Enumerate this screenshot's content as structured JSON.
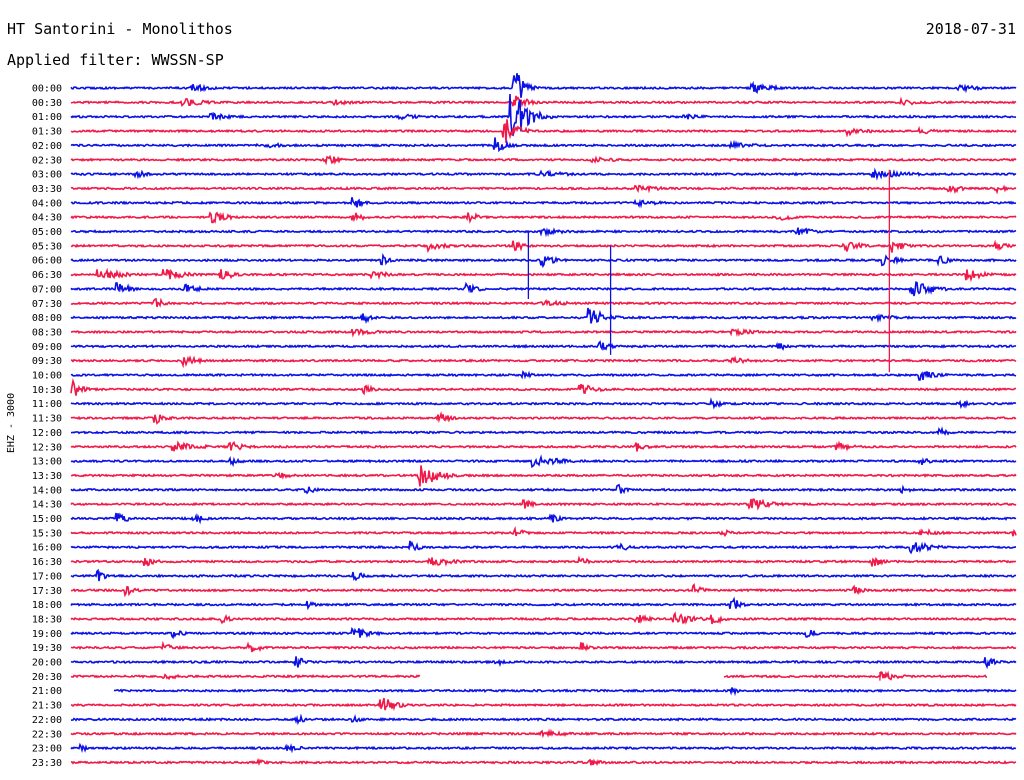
{
  "header": {
    "title": "HT Santorini - Monolithos",
    "date": "2018-07-31",
    "filter": "Applied filter: WWSSN-SP"
  },
  "chart_data": {
    "type": "line",
    "title": "HT Santorini - Monolithos",
    "subtitle": "Applied filter: WWSSN-SP",
    "date": "2018-07-31",
    "ylabel": "EHZ - 3000",
    "xlabel": "",
    "grid": false,
    "colors": {
      "blue": "#0a10e6",
      "red": "#f01a4a"
    },
    "traces": [
      {
        "label": "00:00",
        "color": "blue",
        "events": [
          [
            0.13,
            4,
            20
          ],
          [
            0.47,
            22,
            8
          ],
          [
            0.72,
            6,
            20
          ],
          [
            0.94,
            3,
            30
          ]
        ]
      },
      {
        "label": "00:30",
        "color": "red",
        "events": [
          [
            0.12,
            4,
            25
          ],
          [
            0.28,
            3,
            20
          ],
          [
            0.47,
            8,
            12
          ],
          [
            0.88,
            3,
            25
          ]
        ]
      },
      {
        "label": "01:00",
        "color": "blue",
        "events": [
          [
            0.467,
            30,
            14
          ],
          [
            0.15,
            4,
            15
          ],
          [
            0.35,
            3,
            20
          ],
          [
            0.65,
            3,
            20
          ]
        ]
      },
      {
        "label": "01:30",
        "color": "red",
        "events": [
          [
            0.46,
            14,
            12
          ],
          [
            0.82,
            4,
            25
          ],
          [
            0.9,
            3,
            20
          ]
        ]
      },
      {
        "label": "02:00",
        "color": "blue",
        "events": [
          [
            0.2,
            3,
            30
          ],
          [
            0.45,
            8,
            10
          ],
          [
            0.7,
            3,
            30
          ]
        ]
      },
      {
        "label": "02:30",
        "color": "red",
        "events": [
          [
            0.27,
            6,
            12
          ],
          [
            0.55,
            3,
            30
          ]
        ]
      },
      {
        "label": "03:00",
        "color": "blue",
        "events": [
          [
            0.07,
            4,
            10
          ],
          [
            0.5,
            3,
            30
          ],
          [
            0.85,
            4,
            40
          ]
        ]
      },
      {
        "label": "03:30",
        "color": "red",
        "events": [
          [
            0.93,
            6,
            10
          ],
          [
            0.98,
            4,
            10
          ],
          [
            0.6,
            3,
            30
          ]
        ]
      },
      {
        "label": "04:00",
        "color": "blue",
        "events": [
          [
            0.3,
            6,
            10
          ],
          [
            0.6,
            3,
            25
          ]
        ]
      },
      {
        "label": "04:30",
        "color": "red",
        "events": [
          [
            0.15,
            6,
            15
          ],
          [
            0.3,
            5,
            10
          ],
          [
            0.42,
            6,
            10
          ],
          [
            0.75,
            6,
            10
          ]
        ]
      },
      {
        "label": "05:00",
        "color": "blue",
        "events": [
          [
            0.77,
            4,
            20
          ],
          [
            0.5,
            3,
            30
          ]
        ]
      },
      {
        "label": "05:30",
        "color": "red",
        "events": [
          [
            0.38,
            5,
            15
          ],
          [
            0.47,
            10,
            8
          ],
          [
            0.82,
            6,
            15
          ],
          [
            0.87,
            7,
            10
          ],
          [
            0.98,
            5,
            10
          ]
        ]
      },
      {
        "label": "06:00",
        "color": "blue",
        "events": [
          [
            0.33,
            5,
            8
          ],
          [
            0.5,
            6,
            12
          ],
          [
            0.86,
            6,
            15
          ],
          [
            0.92,
            5,
            10
          ]
        ]
      },
      {
        "label": "06:30",
        "color": "red",
        "events": [
          [
            0.03,
            6,
            25
          ],
          [
            0.1,
            6,
            20
          ],
          [
            0.16,
            6,
            12
          ],
          [
            0.32,
            5,
            15
          ],
          [
            0.95,
            6,
            15
          ]
        ]
      },
      {
        "label": "07:00",
        "color": "blue",
        "events": [
          [
            0.05,
            6,
            15
          ],
          [
            0.12,
            5,
            15
          ],
          [
            0.42,
            6,
            10
          ],
          [
            0.89,
            9,
            20
          ]
        ]
      },
      {
        "label": "07:30",
        "color": "red",
        "events": [
          [
            0.09,
            6,
            8
          ],
          [
            0.5,
            3,
            30
          ]
        ]
      },
      {
        "label": "08:00",
        "color": "blue",
        "events": [
          [
            0.31,
            5,
            10
          ],
          [
            0.55,
            10,
            14
          ],
          [
            0.85,
            3,
            30
          ]
        ]
      },
      {
        "label": "08:30",
        "color": "red",
        "events": [
          [
            0.3,
            3,
            30
          ],
          [
            0.7,
            3,
            30
          ]
        ]
      },
      {
        "label": "09:00",
        "color": "blue",
        "events": [
          [
            0.56,
            5,
            10
          ],
          [
            0.75,
            4,
            10
          ]
        ]
      },
      {
        "label": "09:30",
        "color": "red",
        "events": [
          [
            0.12,
            5,
            15
          ],
          [
            0.7,
            3,
            25
          ]
        ]
      },
      {
        "label": "10:00",
        "color": "blue",
        "events": [
          [
            0.48,
            4,
            8
          ],
          [
            0.9,
            6,
            15
          ]
        ]
      },
      {
        "label": "10:30",
        "color": "red",
        "events": [
          [
            0.003,
            9,
            8
          ],
          [
            0.31,
            5,
            10
          ],
          [
            0.54,
            6,
            15
          ]
        ]
      },
      {
        "label": "11:00",
        "color": "blue",
        "events": [
          [
            0.68,
            4,
            10
          ],
          [
            0.94,
            4,
            10
          ]
        ]
      },
      {
        "label": "11:30",
        "color": "red",
        "events": [
          [
            0.09,
            6,
            10
          ],
          [
            0.39,
            6,
            10
          ]
        ]
      },
      {
        "label": "12:00",
        "color": "blue",
        "events": [
          [
            0.92,
            4,
            10
          ]
        ]
      },
      {
        "label": "12:30",
        "color": "red",
        "events": [
          [
            0.11,
            5,
            25
          ],
          [
            0.17,
            5,
            15
          ],
          [
            0.6,
            5,
            10
          ],
          [
            0.81,
            5,
            15
          ]
        ]
      },
      {
        "label": "13:00",
        "color": "blue",
        "events": [
          [
            0.17,
            4,
            10
          ],
          [
            0.49,
            6,
            25
          ],
          [
            0.9,
            4,
            10
          ]
        ]
      },
      {
        "label": "13:30",
        "color": "red",
        "events": [
          [
            0.37,
            14,
            16
          ],
          [
            0.22,
            3,
            20
          ]
        ]
      },
      {
        "label": "14:00",
        "color": "blue",
        "events": [
          [
            0.25,
            5,
            8
          ],
          [
            0.58,
            5,
            10
          ],
          [
            0.88,
            3,
            10
          ]
        ]
      },
      {
        "label": "14:30",
        "color": "red",
        "events": [
          [
            0.48,
            5,
            10
          ],
          [
            0.72,
            6,
            20
          ]
        ]
      },
      {
        "label": "15:00",
        "color": "blue",
        "events": [
          [
            0.05,
            6,
            10
          ],
          [
            0.13,
            5,
            12
          ],
          [
            0.51,
            4,
            10
          ]
        ]
      },
      {
        "label": "15:30",
        "color": "red",
        "events": [
          [
            0.47,
            5,
            10
          ],
          [
            0.69,
            4,
            10
          ],
          [
            0.9,
            5,
            15
          ],
          [
            1.0,
            5,
            10
          ]
        ]
      },
      {
        "label": "16:00",
        "color": "blue",
        "events": [
          [
            0.36,
            7,
            8
          ],
          [
            0.58,
            5,
            10
          ],
          [
            0.89,
            6,
            20
          ]
        ]
      },
      {
        "label": "16:30",
        "color": "red",
        "events": [
          [
            0.08,
            5,
            10
          ],
          [
            0.38,
            6,
            20
          ],
          [
            0.54,
            4,
            10
          ],
          [
            0.85,
            5,
            10
          ]
        ]
      },
      {
        "label": "17:00",
        "color": "blue",
        "events": [
          [
            0.03,
            6,
            8
          ],
          [
            0.3,
            5,
            10
          ]
        ]
      },
      {
        "label": "17:30",
        "color": "red",
        "events": [
          [
            0.06,
            5,
            10
          ],
          [
            0.66,
            6,
            8
          ],
          [
            0.83,
            4,
            10
          ]
        ]
      },
      {
        "label": "18:00",
        "color": "blue",
        "events": [
          [
            0.25,
            4,
            8
          ],
          [
            0.7,
            7,
            10
          ]
        ]
      },
      {
        "label": "18:30",
        "color": "red",
        "events": [
          [
            0.16,
            5,
            8
          ],
          [
            0.6,
            5,
            10
          ],
          [
            0.64,
            6,
            20
          ],
          [
            0.68,
            5,
            10
          ]
        ]
      },
      {
        "label": "19:00",
        "color": "blue",
        "events": [
          [
            0.11,
            5,
            8
          ],
          [
            0.3,
            7,
            15
          ],
          [
            0.78,
            5,
            10
          ]
        ]
      },
      {
        "label": "19:30",
        "color": "red",
        "events": [
          [
            0.1,
            4,
            12
          ],
          [
            0.19,
            5,
            12
          ],
          [
            0.54,
            6,
            8
          ]
        ]
      },
      {
        "label": "20:00",
        "color": "blue",
        "events": [
          [
            0.24,
            6,
            8
          ],
          [
            0.45,
            4,
            8
          ],
          [
            0.97,
            5,
            10
          ]
        ]
      },
      {
        "label": "20:30",
        "color": "red",
        "events": [
          [
            0.1,
            3,
            20
          ],
          [
            0.86,
            5,
            15
          ]
        ],
        "gaps": [
          [
            0.37,
            0.69
          ],
          [
            0.97,
            1.0
          ]
        ]
      },
      {
        "label": "21:00",
        "color": "blue",
        "events": [
          [
            0.7,
            4,
            8
          ]
        ],
        "gaps": [
          [
            0.0,
            0.045
          ]
        ]
      },
      {
        "label": "21:30",
        "color": "red",
        "events": [
          [
            0.33,
            9,
            12
          ]
        ]
      },
      {
        "label": "22:00",
        "color": "blue",
        "events": [
          [
            0.24,
            4,
            10
          ],
          [
            0.3,
            3,
            10
          ]
        ]
      },
      {
        "label": "22:30",
        "color": "red",
        "events": [
          [
            0.5,
            3,
            30
          ]
        ]
      },
      {
        "label": "23:00",
        "color": "blue",
        "events": [
          [
            0.01,
            4,
            8
          ],
          [
            0.23,
            5,
            10
          ]
        ]
      },
      {
        "label": "23:30",
        "color": "red",
        "events": [
          [
            0.2,
            3,
            10
          ],
          [
            0.55,
            3,
            15
          ]
        ]
      }
    ],
    "spikes": [
      {
        "trace": "05:30",
        "x": 0.484,
        "color": "blue",
        "up": 1.0,
        "down": 3.7
      },
      {
        "trace": "06:00",
        "x": 0.571,
        "color": "blue",
        "up": 1.0,
        "down": 6.6
      },
      {
        "trace": "03:00",
        "x": 0.866,
        "color": "red",
        "up": 0.3,
        "down": 13.8
      },
      {
        "trace": "20:30",
        "x": 0.856,
        "color": "red",
        "up": 0.3,
        "down": 0.3
      }
    ]
  }
}
